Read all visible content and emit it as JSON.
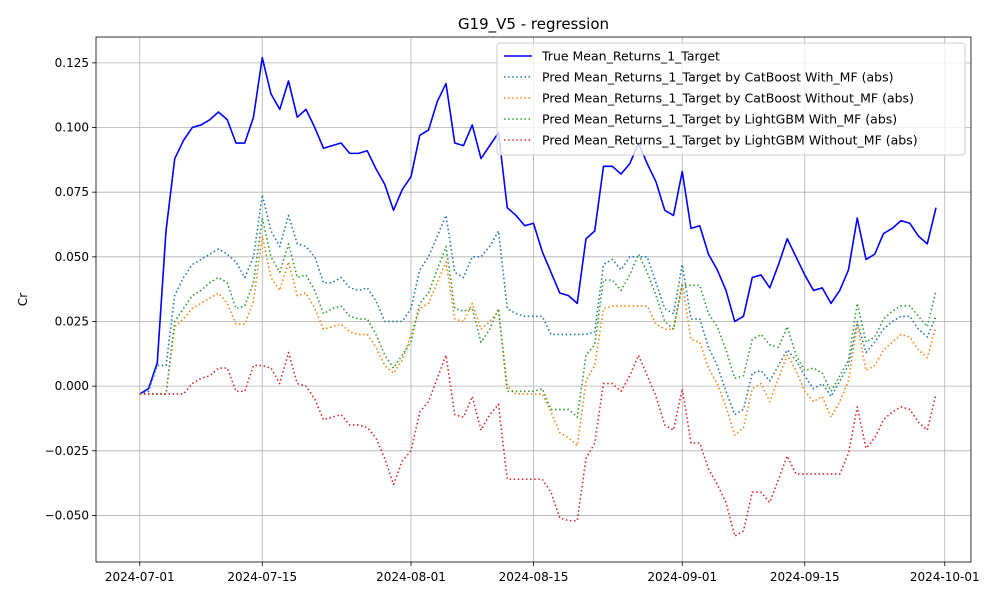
{
  "chart_data": {
    "type": "line",
    "title": "G19_V5 - regression",
    "xlabel": "",
    "ylabel": "Cr",
    "xlim": [
      "2024-06-26",
      "2024-10-04"
    ],
    "ylim": [
      -0.068,
      0.135
    ],
    "grid": true,
    "legend_position": "top-right",
    "x_ticks": [
      "2024-07-01",
      "2024-07-15",
      "2024-08-01",
      "2024-08-15",
      "2024-09-01",
      "2024-09-15",
      "2024-10-01"
    ],
    "y_ticks": [
      -0.05,
      -0.025,
      0.0,
      0.025,
      0.05,
      0.075,
      0.1,
      0.125
    ],
    "y_tick_labels": [
      "−0.050",
      "−0.025",
      "0.000",
      "0.025",
      "0.050",
      "0.075",
      "0.100",
      "0.125"
    ],
    "x": [
      "2024-07-01",
      "2024-07-02",
      "2024-07-03",
      "2024-07-04",
      "2024-07-05",
      "2024-07-06",
      "2024-07-07",
      "2024-07-08",
      "2024-07-09",
      "2024-07-10",
      "2024-07-11",
      "2024-07-12",
      "2024-07-13",
      "2024-07-14",
      "2024-07-15",
      "2024-07-16",
      "2024-07-17",
      "2024-07-18",
      "2024-07-19",
      "2024-07-20",
      "2024-07-21",
      "2024-07-22",
      "2024-07-23",
      "2024-07-24",
      "2024-07-25",
      "2024-07-26",
      "2024-07-27",
      "2024-07-28",
      "2024-07-29",
      "2024-07-30",
      "2024-07-31",
      "2024-08-01",
      "2024-08-02",
      "2024-08-03",
      "2024-08-04",
      "2024-08-05",
      "2024-08-06",
      "2024-08-07",
      "2024-08-08",
      "2024-08-09",
      "2024-08-10",
      "2024-08-11",
      "2024-08-12",
      "2024-08-13",
      "2024-08-14",
      "2024-08-15",
      "2024-08-16",
      "2024-08-17",
      "2024-08-18",
      "2024-08-19",
      "2024-08-20",
      "2024-08-21",
      "2024-08-22",
      "2024-08-23",
      "2024-08-24",
      "2024-08-25",
      "2024-08-26",
      "2024-08-27",
      "2024-08-28",
      "2024-08-29",
      "2024-08-30",
      "2024-08-31",
      "2024-09-01",
      "2024-09-02",
      "2024-09-03",
      "2024-09-04",
      "2024-09-05",
      "2024-09-06",
      "2024-09-07",
      "2024-09-08",
      "2024-09-09",
      "2024-09-10",
      "2024-09-11",
      "2024-09-12",
      "2024-09-13",
      "2024-09-14",
      "2024-09-15",
      "2024-09-16",
      "2024-09-17",
      "2024-09-18",
      "2024-09-19",
      "2024-09-20",
      "2024-09-21",
      "2024-09-22",
      "2024-09-23",
      "2024-09-24",
      "2024-09-25",
      "2024-09-26",
      "2024-09-27",
      "2024-09-28",
      "2024-09-29",
      "2024-09-30"
    ],
    "series": [
      {
        "name": "True Mean_Returns_1_Target",
        "color": "#0000ff",
        "style": "solid",
        "values": [
          -0.003,
          -0.001,
          0.009,
          0.06,
          0.088,
          0.095,
          0.1,
          0.101,
          0.103,
          0.106,
          0.103,
          0.094,
          0.094,
          0.104,
          0.127,
          0.113,
          0.107,
          0.118,
          0.104,
          0.107,
          0.1,
          0.092,
          0.093,
          0.094,
          0.09,
          0.09,
          0.091,
          0.084,
          0.078,
          0.068,
          0.076,
          0.081,
          0.097,
          0.099,
          0.11,
          0.117,
          0.094,
          0.093,
          0.101,
          0.088,
          0.093,
          0.098,
          0.069,
          0.066,
          0.062,
          0.063,
          0.052,
          0.044,
          0.036,
          0.035,
          0.032,
          0.057,
          0.06,
          0.085,
          0.085,
          0.082,
          0.086,
          0.094,
          0.086,
          0.079,
          0.068,
          0.066,
          0.083,
          0.061,
          0.062,
          0.051,
          0.045,
          0.037,
          0.025,
          0.027,
          0.042,
          0.043,
          0.038,
          0.047,
          0.057,
          0.05,
          0.043,
          0.037,
          0.038,
          0.032,
          0.037,
          0.045,
          0.065,
          0.049,
          0.051,
          0.059,
          0.061,
          0.064,
          0.063,
          0.058,
          0.055,
          0.069
        ]
      },
      {
        "name": "Pred Mean_Returns_1_Target by CatBoost With_MF (abs)",
        "color": "#1f77b4",
        "style": "dotted",
        "values": [
          -0.003,
          -0.002,
          0.008,
          0.008,
          0.035,
          0.042,
          0.047,
          0.049,
          0.051,
          0.053,
          0.051,
          0.048,
          0.042,
          0.05,
          0.074,
          0.06,
          0.054,
          0.066,
          0.055,
          0.054,
          0.05,
          0.04,
          0.04,
          0.042,
          0.038,
          0.037,
          0.038,
          0.033,
          0.025,
          0.025,
          0.025,
          0.03,
          0.045,
          0.05,
          0.058,
          0.066,
          0.044,
          0.042,
          0.05,
          0.05,
          0.054,
          0.06,
          0.03,
          0.028,
          0.027,
          0.027,
          0.027,
          0.02,
          0.02,
          0.02,
          0.02,
          0.02,
          0.021,
          0.047,
          0.049,
          0.045,
          0.05,
          0.05,
          0.05,
          0.04,
          0.03,
          0.028,
          0.047,
          0.026,
          0.026,
          0.015,
          0.008,
          -0.002,
          -0.011,
          -0.009,
          0.005,
          0.006,
          0.002,
          0.008,
          0.014,
          0.01,
          0.004,
          -0.001,
          0.001,
          -0.004,
          0.002,
          0.008,
          0.025,
          0.013,
          0.017,
          0.022,
          0.025,
          0.027,
          0.027,
          0.022,
          0.019,
          0.027
        ]
      },
      {
        "name": "Pred Mean_Returns_1_Target by CatBoost Without_MF (abs)",
        "color": "#ff7f0e",
        "style": "dotted",
        "values": [
          -0.003,
          -0.003,
          -0.003,
          -0.003,
          0.023,
          0.026,
          0.03,
          0.032,
          0.034,
          0.036,
          0.032,
          0.024,
          0.024,
          0.033,
          0.058,
          0.042,
          0.037,
          0.048,
          0.035,
          0.036,
          0.03,
          0.022,
          0.023,
          0.024,
          0.021,
          0.02,
          0.02,
          0.015,
          0.008,
          0.005,
          0.01,
          0.02,
          0.03,
          0.032,
          0.04,
          0.048,
          0.026,
          0.025,
          0.032,
          0.022,
          0.025,
          0.029,
          0.0,
          -0.003,
          -0.003,
          -0.003,
          -0.003,
          -0.01,
          -0.018,
          -0.02,
          -0.023,
          0.002,
          0.008,
          0.03,
          0.031,
          0.031,
          0.031,
          0.031,
          0.031,
          0.024,
          0.022,
          0.022,
          0.04,
          0.018,
          0.017,
          0.007,
          0.001,
          -0.008,
          -0.019,
          -0.016,
          -0.001,
          0.001,
          -0.006,
          0.003,
          0.012,
          0.006,
          -0.002,
          -0.006,
          -0.004,
          -0.012,
          -0.006,
          0.002,
          0.024,
          0.006,
          0.008,
          0.014,
          0.017,
          0.02,
          0.019,
          0.014,
          0.011,
          0.023
        ]
      },
      {
        "name": "Pred Mean_Returns_1_Target by LightGBM With_MF (abs)",
        "color": "#2ca02c",
        "style": "dotted",
        "values": [
          -0.003,
          -0.003,
          -0.003,
          -0.003,
          0.025,
          0.03,
          0.035,
          0.037,
          0.04,
          0.042,
          0.04,
          0.03,
          0.031,
          0.04,
          0.065,
          0.05,
          0.044,
          0.055,
          0.042,
          0.043,
          0.037,
          0.028,
          0.03,
          0.031,
          0.027,
          0.026,
          0.026,
          0.02,
          0.012,
          0.007,
          0.012,
          0.017,
          0.032,
          0.036,
          0.045,
          0.054,
          0.03,
          0.029,
          0.03,
          0.017,
          0.022,
          0.03,
          -0.002,
          -0.002,
          -0.002,
          -0.002,
          -0.001,
          -0.009,
          -0.009,
          -0.009,
          -0.012,
          0.012,
          0.016,
          0.041,
          0.041,
          0.037,
          0.043,
          0.051,
          0.044,
          0.035,
          0.025,
          0.022,
          0.039,
          0.039,
          0.039,
          0.028,
          0.023,
          0.014,
          0.003,
          0.004,
          0.018,
          0.02,
          0.016,
          0.015,
          0.023,
          0.012,
          0.006,
          0.007,
          0.005,
          -0.002,
          0.004,
          0.01,
          0.032,
          0.017,
          0.019,
          0.026,
          0.029,
          0.031,
          0.031,
          0.027,
          0.023,
          0.037
        ]
      },
      {
        "name": "Pred Mean_Returns_1_Target by LightGBM Without_MF (abs)",
        "color": "#d62728",
        "style": "dotted",
        "values": [
          -0.003,
          -0.003,
          -0.003,
          -0.003,
          -0.003,
          -0.003,
          0.001,
          0.003,
          0.004,
          0.007,
          0.007,
          -0.002,
          -0.002,
          0.008,
          0.008,
          0.007,
          0.001,
          0.013,
          0.001,
          0.0,
          -0.005,
          -0.013,
          -0.012,
          -0.011,
          -0.015,
          -0.015,
          -0.016,
          -0.02,
          -0.028,
          -0.038,
          -0.029,
          -0.025,
          -0.01,
          -0.006,
          0.003,
          0.012,
          -0.011,
          -0.012,
          -0.004,
          -0.017,
          -0.011,
          -0.007,
          -0.036,
          -0.036,
          -0.036,
          -0.036,
          -0.036,
          -0.041,
          -0.051,
          -0.052,
          -0.052,
          -0.028,
          -0.022,
          0.001,
          0.001,
          -0.002,
          0.004,
          0.012,
          0.004,
          -0.004,
          -0.015,
          -0.017,
          -0.001,
          -0.022,
          -0.022,
          -0.032,
          -0.038,
          -0.045,
          -0.058,
          -0.056,
          -0.041,
          -0.041,
          -0.045,
          -0.036,
          -0.027,
          -0.034,
          -0.034,
          -0.034,
          -0.034,
          -0.034,
          -0.034,
          -0.026,
          -0.008,
          -0.024,
          -0.02,
          -0.013,
          -0.01,
          -0.008,
          -0.009,
          -0.014,
          -0.017,
          -0.003
        ]
      }
    ]
  }
}
